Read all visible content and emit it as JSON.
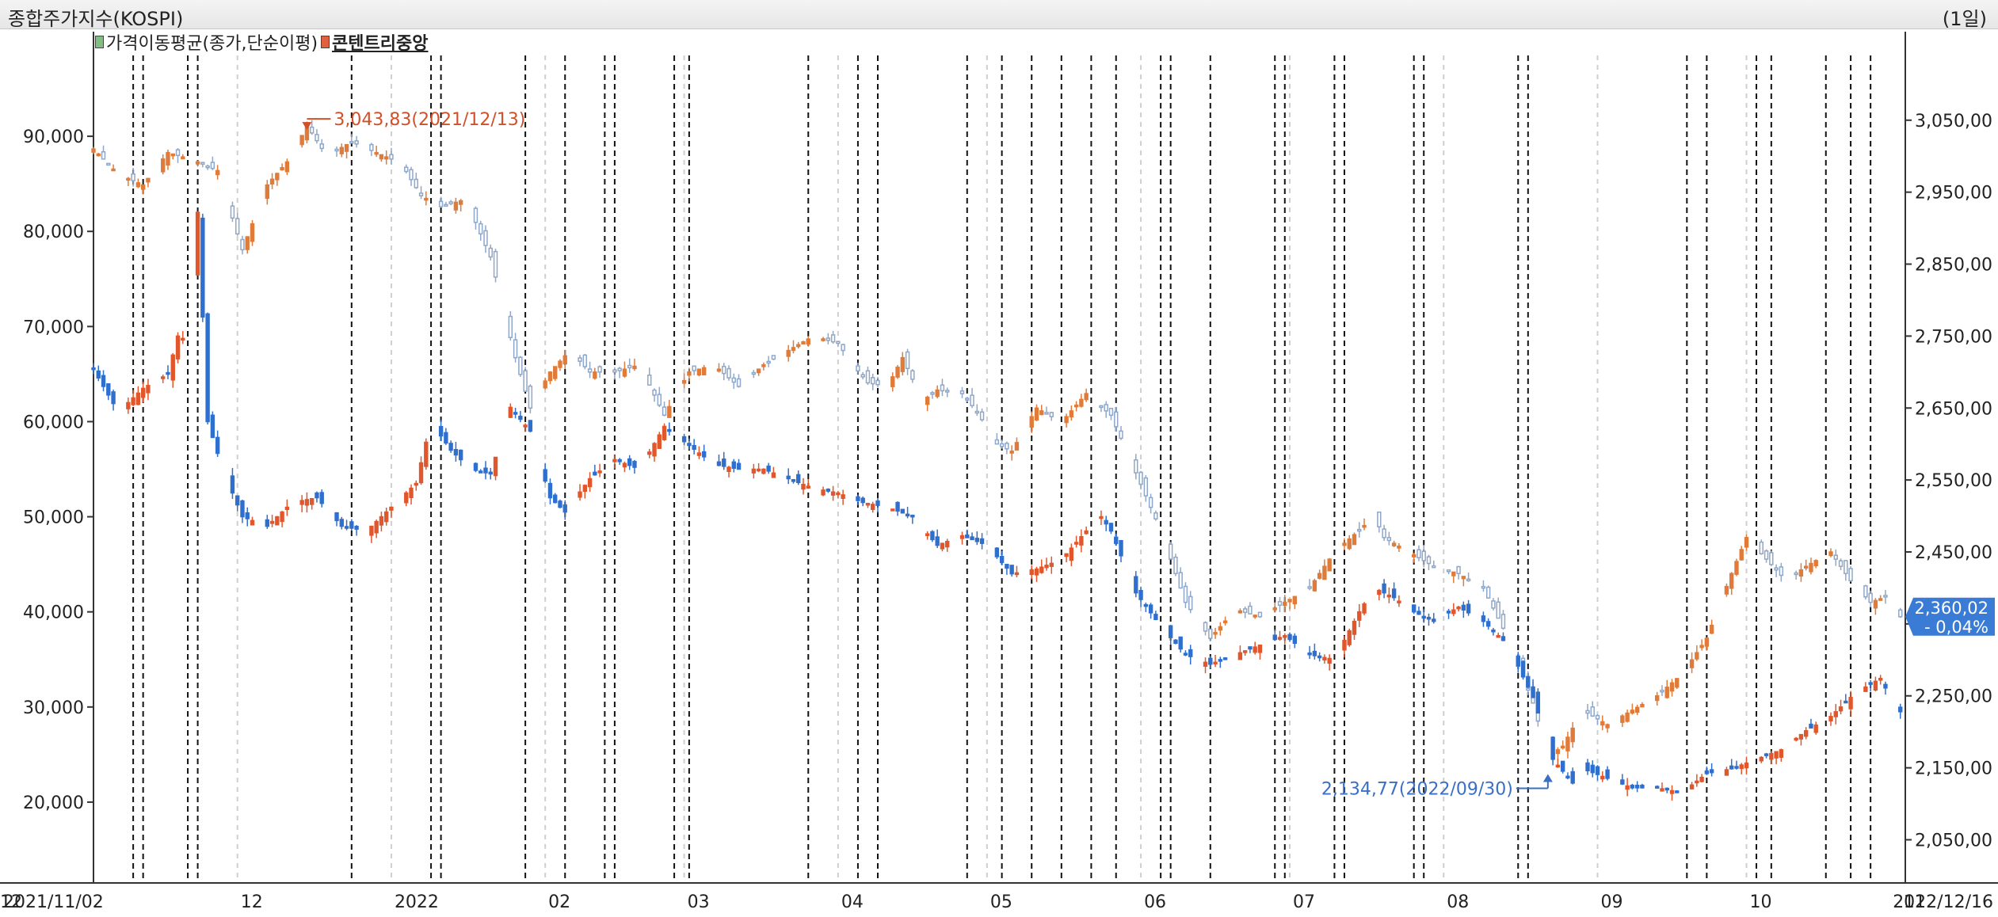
{
  "header": {
    "title": "종합주가지수(KOSPI)",
    "period": "(1일)"
  },
  "legend": [
    {
      "label": "가격이동평균(종가,단순이평)",
      "color": "#2e7d32",
      "active": false
    },
    {
      "label": "콘텐트리중앙",
      "color": "#c0392b",
      "active": true
    }
  ],
  "chart_data": {
    "type": "candlestick",
    "start_date": "2021/11/02",
    "end_date": "2022/12/16",
    "left_axis": {
      "ticks": [
        "90,000",
        "80,000",
        "70,000",
        "60,000",
        "50,000",
        "40,000",
        "30,000",
        "20,000"
      ],
      "tick_values": [
        90000,
        80000,
        70000,
        60000,
        50000,
        40000,
        30000,
        20000
      ],
      "range": [
        11500,
        98500
      ]
    },
    "right_axis": {
      "ticks": [
        "3,050,00",
        "2,950,00",
        "2,850,00",
        "2,750,00",
        "2,650,00",
        "2,550,00",
        "2,450,00",
        "2,350,00",
        "2,250,00",
        "2,150,00",
        "2,050,00"
      ],
      "tick_values": [
        3050,
        2950,
        2850,
        2750,
        2650,
        2550,
        2450,
        2350,
        2250,
        2150,
        2050
      ],
      "range": [
        1990,
        3140
      ]
    },
    "x_labels": [
      "2021/11/02",
      "12",
      "2022",
      "02",
      "03",
      "04",
      "05",
      "06",
      "07",
      "08",
      "09",
      "10",
      "11",
      "12",
      "2022/12/16"
    ],
    "price_label": {
      "value": "2,360,02",
      "change": "- 0,04%",
      "color": "#3a7bd5"
    },
    "annotations": [
      {
        "text": "3,043,83(2021/12/13)",
        "color": "#d1502a"
      },
      {
        "text": "2,134,77(2022/09/30)",
        "color": "#3a6fc4"
      }
    ],
    "series": [
      {
        "name": "콘텐트리중앙",
        "axis": "left",
        "up_color": "#e1562b",
        "down_color": "#2f6fcd",
        "points": [
          [
            0,
            65500
          ],
          [
            5,
            61000
          ],
          [
            10,
            63500
          ],
          [
            15,
            65000
          ],
          [
            17,
            69000
          ],
          [
            19,
            68500
          ],
          [
            21,
            82000
          ],
          [
            23,
            60000
          ],
          [
            26,
            55000
          ],
          [
            30,
            50000
          ],
          [
            35,
            49000
          ],
          [
            40,
            51500
          ],
          [
            45,
            52000
          ],
          [
            50,
            49000
          ],
          [
            55,
            48500
          ],
          [
            60,
            51000
          ],
          [
            65,
            53500
          ],
          [
            68,
            60000
          ],
          [
            72,
            57000
          ],
          [
            76,
            55000
          ],
          [
            80,
            54500
          ],
          [
            84,
            61500
          ],
          [
            88,
            59000
          ],
          [
            92,
            52000
          ],
          [
            95,
            50500
          ],
          [
            100,
            54000
          ],
          [
            105,
            56000
          ],
          [
            110,
            55000
          ],
          [
            115,
            59500
          ],
          [
            120,
            57500
          ],
          [
            125,
            55500
          ],
          [
            130,
            55000
          ],
          [
            135,
            55000
          ],
          [
            140,
            54000
          ],
          [
            145,
            53000
          ],
          [
            150,
            52500
          ],
          [
            155,
            51500
          ],
          [
            160,
            51000
          ],
          [
            165,
            50000
          ],
          [
            170,
            47000
          ],
          [
            175,
            48000
          ],
          [
            180,
            47000
          ],
          [
            185,
            44000
          ],
          [
            190,
            44500
          ],
          [
            195,
            45500
          ],
          [
            200,
            48500
          ],
          [
            203,
            50000
          ],
          [
            205,
            48500
          ],
          [
            210,
            42000
          ],
          [
            215,
            38500
          ],
          [
            220,
            35500
          ],
          [
            225,
            34500
          ],
          [
            230,
            35500
          ],
          [
            235,
            36500
          ],
          [
            240,
            37500
          ],
          [
            245,
            35500
          ],
          [
            250,
            35000
          ],
          [
            255,
            40000
          ],
          [
            258,
            42500
          ],
          [
            262,
            41500
          ],
          [
            266,
            40000
          ],
          [
            270,
            39000
          ],
          [
            275,
            40500
          ],
          [
            280,
            39000
          ],
          [
            285,
            36500
          ],
          [
            290,
            31000
          ],
          [
            294,
            24500
          ],
          [
            298,
            22000
          ],
          [
            300,
            23500
          ],
          [
            305,
            22500
          ],
          [
            310,
            21500
          ],
          [
            315,
            21500
          ],
          [
            320,
            21000
          ],
          [
            325,
            23000
          ],
          [
            330,
            23500
          ],
          [
            335,
            24500
          ],
          [
            340,
            25500
          ],
          [
            345,
            27500
          ],
          [
            350,
            29000
          ],
          [
            355,
            31500
          ],
          [
            360,
            33000
          ],
          [
            362,
            31000
          ],
          [
            364,
            29500
          ]
        ]
      },
      {
        "name": "종합주가지수(KOSPI)",
        "axis": "right",
        "up_color": "#e07b39",
        "down_color": "#8fa7c9",
        "points": [
          [
            0,
            3010
          ],
          [
            5,
            2975
          ],
          [
            10,
            2960
          ],
          [
            15,
            3005
          ],
          [
            20,
            2995
          ],
          [
            25,
            2980
          ],
          [
            30,
            2870
          ],
          [
            35,
            2960
          ],
          [
            40,
            3000
          ],
          [
            43,
            3043
          ],
          [
            47,
            3000
          ],
          [
            52,
            3020
          ],
          [
            57,
            3005
          ],
          [
            62,
            2990
          ],
          [
            66,
            2945
          ],
          [
            70,
            2930
          ],
          [
            75,
            2940
          ],
          [
            80,
            2860
          ],
          [
            85,
            2720
          ],
          [
            88,
            2650
          ],
          [
            92,
            2700
          ],
          [
            96,
            2730
          ],
          [
            100,
            2700
          ],
          [
            105,
            2700
          ],
          [
            110,
            2710
          ],
          [
            115,
            2640
          ],
          [
            120,
            2700
          ],
          [
            125,
            2710
          ],
          [
            130,
            2680
          ],
          [
            135,
            2710
          ],
          [
            140,
            2730
          ],
          [
            145,
            2750
          ],
          [
            150,
            2740
          ],
          [
            153,
            2710
          ],
          [
            156,
            2685
          ],
          [
            160,
            2680
          ],
          [
            163,
            2720
          ],
          [
            167,
            2660
          ],
          [
            170,
            2675
          ],
          [
            175,
            2670
          ],
          [
            178,
            2645
          ],
          [
            182,
            2600
          ],
          [
            185,
            2590
          ],
          [
            190,
            2650
          ],
          [
            195,
            2630
          ],
          [
            200,
            2670
          ],
          [
            205,
            2640
          ],
          [
            210,
            2560
          ],
          [
            215,
            2480
          ],
          [
            220,
            2380
          ],
          [
            225,
            2330
          ],
          [
            230,
            2370
          ],
          [
            235,
            2360
          ],
          [
            240,
            2380
          ],
          [
            245,
            2400
          ],
          [
            250,
            2450
          ],
          [
            255,
            2480
          ],
          [
            258,
            2500
          ],
          [
            260,
            2470
          ],
          [
            265,
            2450
          ],
          [
            270,
            2430
          ],
          [
            275,
            2420
          ],
          [
            280,
            2400
          ],
          [
            285,
            2330
          ],
          [
            290,
            2240
          ],
          [
            293,
            2165
          ],
          [
            296,
            2180
          ],
          [
            300,
            2230
          ],
          [
            305,
            2210
          ],
          [
            310,
            2230
          ],
          [
            315,
            2250
          ],
          [
            320,
            2280
          ],
          [
            325,
            2330
          ],
          [
            330,
            2420
          ],
          [
            333,
            2470
          ],
          [
            337,
            2440
          ],
          [
            341,
            2410
          ],
          [
            345,
            2430
          ],
          [
            350,
            2450
          ],
          [
            354,
            2410
          ],
          [
            358,
            2380
          ],
          [
            362,
            2390
          ],
          [
            364,
            2360
          ]
        ]
      }
    ]
  }
}
